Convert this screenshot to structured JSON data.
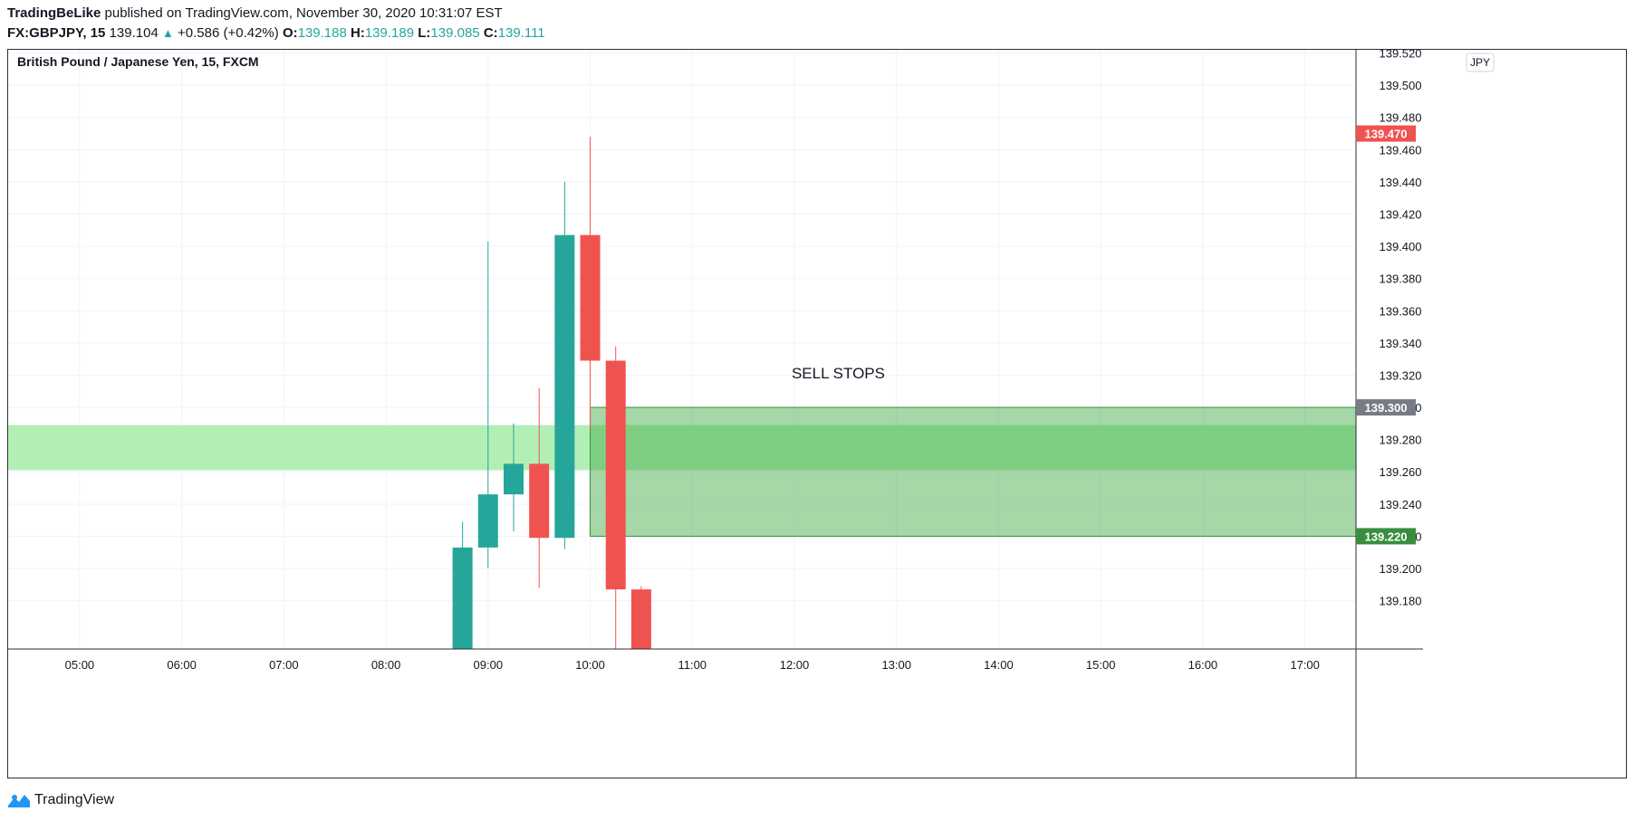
{
  "header": {
    "publisher": "TradingBeLike",
    "published_text": "published on TradingView.com, November 30, 2020 10:31:07 EST",
    "symbol": "FX:GBPJPY, 15",
    "last_price": "139.104",
    "change_arrow": "▲",
    "change": "+0.586 (+0.42%)",
    "open_label": "O:",
    "open": "139.188",
    "high_label": "H:",
    "high": "139.189",
    "low_label": "L:",
    "low": "139.085",
    "close_label": "C:",
    "close": "139.111"
  },
  "footer": {
    "brand": "TradingView"
  },
  "colors": {
    "up": "#26a69a",
    "down": "#ef5350",
    "zone": "#a5d6a7",
    "grid": "#f0f3fa"
  },
  "chart_data": {
    "type": "candlestick",
    "title": "British Pound / Japanese Yen, 15, FXCM",
    "currency": "JPY",
    "y_ticks": [
      "139.520",
      "139.500",
      "139.480",
      "139.460",
      "139.440",
      "139.420",
      "139.400",
      "139.380",
      "139.360",
      "139.340",
      "139.320",
      "139.300",
      "139.280",
      "139.260",
      "139.240",
      "139.220",
      "139.200",
      "139.180"
    ],
    "ylim": [
      139.15,
      139.522
    ],
    "x_ticks": [
      "05:00",
      "06:00",
      "07:00",
      "08:00",
      "09:00",
      "10:00",
      "11:00",
      "12:00",
      "13:00",
      "14:00",
      "15:00",
      "16:00",
      "17:00"
    ],
    "xlim": [
      4.3,
      17.5
    ],
    "candles": [
      {
        "t": 8.75,
        "o": 139.15,
        "h": 139.229,
        "l": 139.15,
        "c": 139.213
      },
      {
        "t": 9.0,
        "o": 139.213,
        "h": 139.403,
        "l": 139.2,
        "c": 139.246
      },
      {
        "t": 9.25,
        "o": 139.246,
        "h": 139.29,
        "l": 139.223,
        "c": 139.265
      },
      {
        "t": 9.5,
        "o": 139.265,
        "h": 139.312,
        "l": 139.188,
        "c": 139.219
      },
      {
        "t": 9.75,
        "o": 139.219,
        "h": 139.44,
        "l": 139.212,
        "c": 139.407
      },
      {
        "t": 10.0,
        "o": 139.407,
        "h": 139.468,
        "l": 139.285,
        "c": 139.329
      },
      {
        "t": 10.25,
        "o": 139.329,
        "h": 139.338,
        "l": 139.15,
        "c": 139.187
      },
      {
        "t": 10.5,
        "o": 139.187,
        "h": 139.189,
        "l": 139.15,
        "c": 139.15
      }
    ],
    "price_labels": [
      {
        "value": 139.47,
        "text": "139.470",
        "color": "#ef5350"
      },
      {
        "value": 139.3,
        "text": "139.300",
        "color": "#787b86"
      },
      {
        "value": 139.22,
        "text": "139.220",
        "color": "#388e3c"
      }
    ],
    "zones": [
      {
        "name": "support-band",
        "from": 139.261,
        "to": 139.289,
        "x_start": 4.3,
        "x_end": 17.5,
        "color": "#b2efb4"
      },
      {
        "name": "sell-stops-box",
        "from": 139.22,
        "to": 139.3,
        "x_start": 10.0,
        "x_end": 17.5,
        "color": "#4caf50"
      }
    ],
    "annotations": [
      {
        "text": "SELL STOPS",
        "x": 12.43,
        "y": 139.318
      }
    ]
  }
}
